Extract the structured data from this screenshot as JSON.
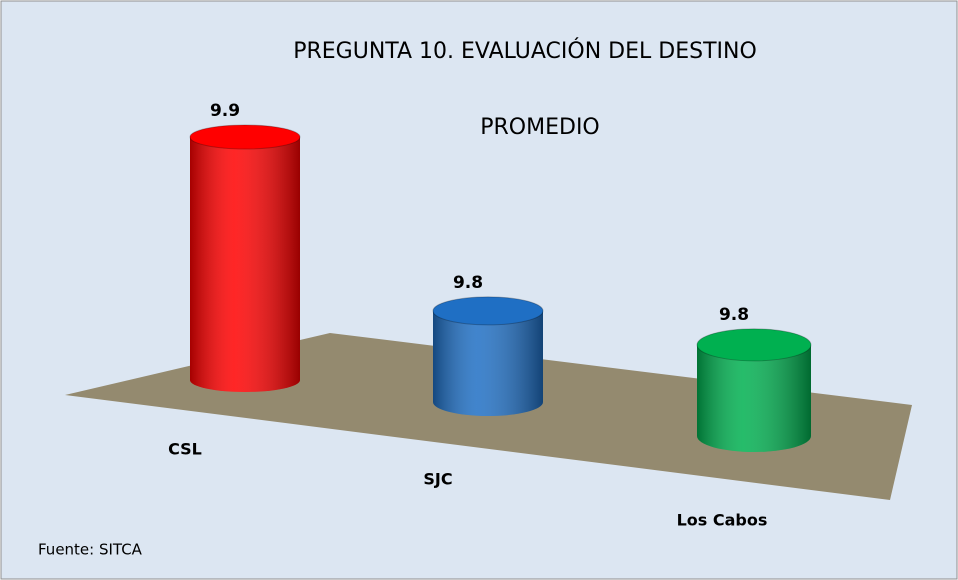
{
  "chart_data": {
    "type": "bar3d",
    "title": "PREGUNTA 10. EVALUACIÓN DEL DESTINO",
    "subtitle": "PROMEDIO",
    "categories": [
      "CSL",
      "SJC",
      "Los Cabos"
    ],
    "values": [
      9.9,
      9.8,
      9.8
    ],
    "colors": [
      "#ff0000",
      "#1f6fc4",
      "#00b050"
    ],
    "ylim": [
      9.74,
      9.9
    ],
    "source": "Fuente: SITCA"
  }
}
